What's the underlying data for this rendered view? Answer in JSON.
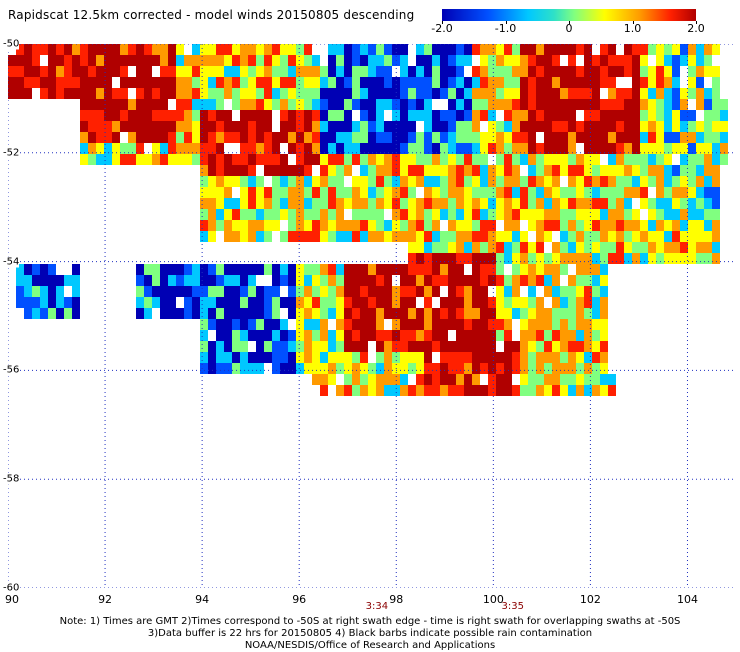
{
  "title": "Rapidscat 12.5km corrected - model winds 20150805 descending",
  "colorbar": {
    "labels": [
      "-2.0",
      "-1.0",
      "0",
      "1.0",
      "2.0"
    ],
    "values": [
      -2.0,
      -1.0,
      0,
      1.0,
      2.0
    ],
    "range": [
      -2.0,
      2.0
    ],
    "colors": [
      "#0000b4",
      "#0050ff",
      "#00c8ff",
      "#80ff80",
      "#ffff00",
      "#ff9a00",
      "#ff2000",
      "#b00000"
    ]
  },
  "chart_data": {
    "type": "heatmap",
    "x_label_values": [
      90,
      92,
      94,
      96,
      98,
      100,
      102,
      104
    ],
    "x_labels": [
      "90",
      "92",
      "94",
      "96",
      "98",
      "100",
      "102",
      "104"
    ],
    "y_label_values": [
      -50,
      -52,
      -54,
      -56,
      -58,
      -60
    ],
    "y_labels": [
      "-50",
      "-52",
      "-54",
      "-56",
      "-58",
      "-60"
    ],
    "xlim": [
      90,
      105
    ],
    "ylim": [
      -60,
      -50
    ],
    "grid": true,
    "swath_times": [
      {
        "label": "3:34",
        "lon": 97.6
      },
      {
        "label": "3:35",
        "lon": 100.4
      }
    ]
  },
  "notes": [
    "Note: 1) Times are GMT 2)Times correspond to -50S at right swath edge - time is right swath for overlapping swaths at -50S",
    "3)Data buffer is 22 hrs for 20150805 4) Black barbs indicate possible rain contamination",
    "NOAA/NESDIS/Office of Research and Applications"
  ]
}
